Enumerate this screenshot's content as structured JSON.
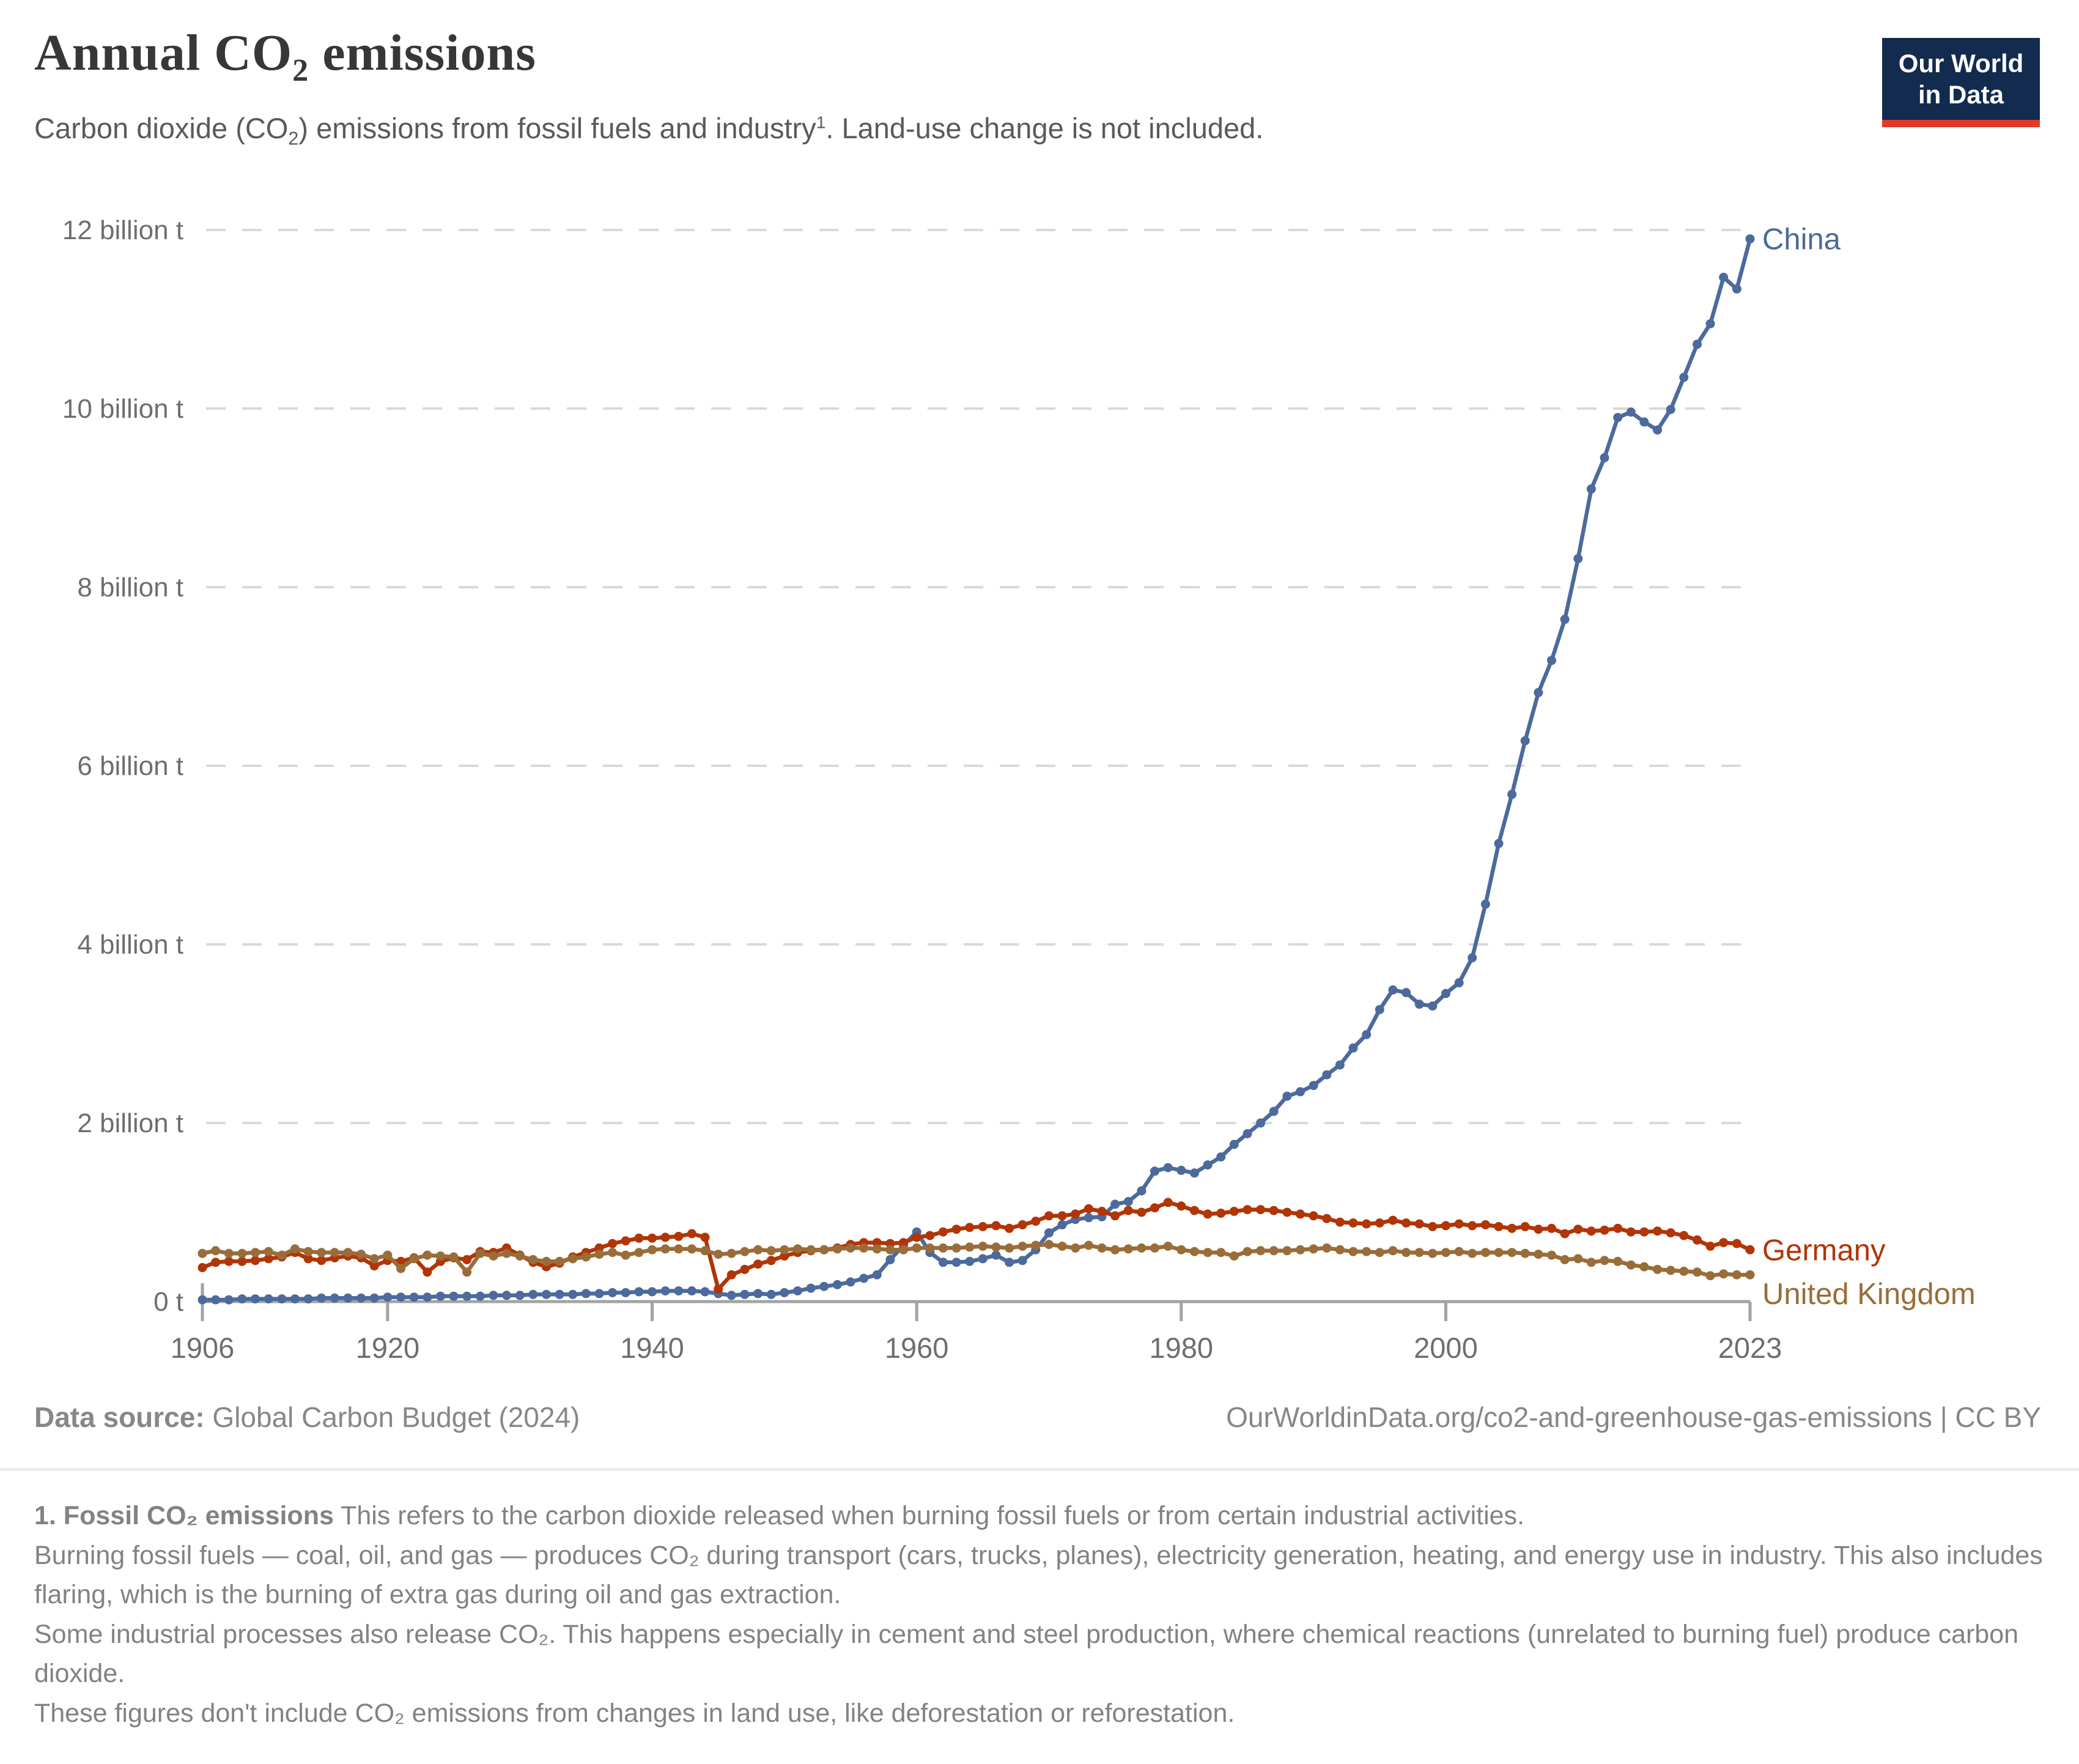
{
  "header": {
    "title_pre": "Annual CO",
    "title_sub": "2",
    "title_post": " emissions",
    "subtitle_pre": "Carbon dioxide (CO",
    "subtitle_sub": "2",
    "subtitle_mid": ") emissions from fossil fuels and industry",
    "subtitle_sup": "1",
    "subtitle_post": ". Land-use change is not included."
  },
  "logo": {
    "line1": "Our World",
    "line2": "in Data",
    "bg_color": "#122B4E",
    "accent_color": "#E23A2A"
  },
  "chart_data": {
    "type": "line",
    "title": "Annual CO2 emissions",
    "unit": "billion t",
    "year_start": 1906,
    "year_end": 2023,
    "year_step": 1,
    "ylim": [
      0,
      12.4
    ],
    "grid": "dashed-horizontal",
    "legend_position": "end-of-line-labels",
    "x_ticks": [
      1906,
      1920,
      1940,
      1960,
      1980,
      2000,
      2023
    ],
    "y_ticks": [
      {
        "value": 0,
        "label": "0 t"
      },
      {
        "value": 2,
        "label": "2 billion t"
      },
      {
        "value": 4,
        "label": "4 billion t"
      },
      {
        "value": 6,
        "label": "6 billion t"
      },
      {
        "value": 8,
        "label": "8 billion t"
      },
      {
        "value": 10,
        "label": "10 billion t"
      },
      {
        "value": 12,
        "label": "12 billion t"
      }
    ],
    "series": [
      {
        "name": "China",
        "color": "#4C6A9C",
        "values": [
          0.02,
          0.02,
          0.02,
          0.03,
          0.03,
          0.03,
          0.03,
          0.03,
          0.03,
          0.04,
          0.04,
          0.04,
          0.04,
          0.04,
          0.05,
          0.05,
          0.05,
          0.05,
          0.06,
          0.06,
          0.06,
          0.06,
          0.07,
          0.07,
          0.07,
          0.08,
          0.08,
          0.08,
          0.08,
          0.09,
          0.09,
          0.1,
          0.1,
          0.11,
          0.11,
          0.12,
          0.12,
          0.12,
          0.11,
          0.09,
          0.07,
          0.08,
          0.09,
          0.08,
          0.1,
          0.12,
          0.15,
          0.17,
          0.19,
          0.22,
          0.26,
          0.3,
          0.47,
          0.63,
          0.78,
          0.55,
          0.44,
          0.44,
          0.45,
          0.48,
          0.52,
          0.44,
          0.46,
          0.58,
          0.77,
          0.86,
          0.92,
          0.94,
          0.95,
          1.09,
          1.12,
          1.24,
          1.46,
          1.5,
          1.47,
          1.44,
          1.53,
          1.62,
          1.76,
          1.88,
          2.0,
          2.13,
          2.3,
          2.35,
          2.42,
          2.54,
          2.65,
          2.84,
          2.99,
          3.27,
          3.49,
          3.46,
          3.33,
          3.31,
          3.45,
          3.57,
          3.85,
          4.45,
          5.13,
          5.68,
          6.28,
          6.82,
          7.18,
          7.64,
          8.32,
          9.1,
          9.45,
          9.9,
          9.96,
          9.85,
          9.76,
          9.99,
          10.35,
          10.72,
          10.95,
          11.47,
          11.34,
          11.9
        ]
      },
      {
        "name": "Germany",
        "color": "#B13507",
        "values": [
          0.38,
          0.44,
          0.45,
          0.45,
          0.46,
          0.48,
          0.5,
          0.55,
          0.48,
          0.46,
          0.49,
          0.51,
          0.49,
          0.4,
          0.46,
          0.45,
          0.49,
          0.33,
          0.45,
          0.49,
          0.47,
          0.56,
          0.55,
          0.6,
          0.52,
          0.44,
          0.39,
          0.43,
          0.5,
          0.55,
          0.6,
          0.65,
          0.68,
          0.71,
          0.71,
          0.72,
          0.73,
          0.76,
          0.72,
          0.14,
          0.3,
          0.36,
          0.42,
          0.46,
          0.51,
          0.55,
          0.57,
          0.58,
          0.6,
          0.64,
          0.66,
          0.66,
          0.65,
          0.66,
          0.72,
          0.74,
          0.78,
          0.81,
          0.83,
          0.84,
          0.85,
          0.82,
          0.86,
          0.9,
          0.96,
          0.96,
          0.98,
          1.04,
          1.01,
          0.96,
          1.02,
          1.0,
          1.05,
          1.11,
          1.07,
          1.02,
          0.98,
          0.99,
          1.01,
          1.03,
          1.03,
          1.02,
          1.0,
          0.98,
          0.96,
          0.93,
          0.89,
          0.88,
          0.87,
          0.88,
          0.91,
          0.88,
          0.87,
          0.84,
          0.85,
          0.87,
          0.85,
          0.86,
          0.84,
          0.82,
          0.84,
          0.81,
          0.82,
          0.76,
          0.81,
          0.79,
          0.8,
          0.82,
          0.78,
          0.78,
          0.79,
          0.77,
          0.74,
          0.69,
          0.62,
          0.66,
          0.65,
          0.58
        ]
      },
      {
        "name": "United Kingdom",
        "color": "#996D39",
        "values": [
          0.54,
          0.57,
          0.54,
          0.54,
          0.55,
          0.56,
          0.52,
          0.59,
          0.56,
          0.55,
          0.55,
          0.55,
          0.53,
          0.48,
          0.52,
          0.37,
          0.48,
          0.52,
          0.51,
          0.5,
          0.33,
          0.54,
          0.51,
          0.54,
          0.51,
          0.47,
          0.45,
          0.45,
          0.48,
          0.5,
          0.53,
          0.55,
          0.52,
          0.55,
          0.58,
          0.59,
          0.59,
          0.59,
          0.57,
          0.53,
          0.54,
          0.56,
          0.58,
          0.57,
          0.58,
          0.59,
          0.58,
          0.58,
          0.59,
          0.6,
          0.6,
          0.59,
          0.58,
          0.58,
          0.6,
          0.6,
          0.6,
          0.6,
          0.61,
          0.62,
          0.61,
          0.6,
          0.62,
          0.63,
          0.64,
          0.62,
          0.6,
          0.63,
          0.6,
          0.58,
          0.59,
          0.6,
          0.6,
          0.62,
          0.58,
          0.56,
          0.55,
          0.55,
          0.51,
          0.56,
          0.57,
          0.57,
          0.57,
          0.58,
          0.59,
          0.6,
          0.58,
          0.56,
          0.56,
          0.55,
          0.57,
          0.55,
          0.55,
          0.54,
          0.55,
          0.56,
          0.54,
          0.55,
          0.55,
          0.55,
          0.54,
          0.53,
          0.52,
          0.47,
          0.48,
          0.44,
          0.46,
          0.45,
          0.41,
          0.39,
          0.36,
          0.35,
          0.34,
          0.33,
          0.29,
          0.31,
          0.3,
          0.3
        ]
      }
    ],
    "style": {
      "grid_color": "#d9d9d9",
      "axis_color": "#a3a3a3",
      "tick_label_color": "#6e6e6e"
    }
  },
  "footer": {
    "source_label": "Data source:",
    "source_value": " Global Carbon Budget (2024)",
    "link": "OurWorldinData.org/co2-and-greenhouse-gas-emissions | CC BY"
  },
  "footnote": {
    "lead_bold": "1. Fossil CO₂ emissions",
    "lead_rest": " This refers to the carbon dioxide released when burning fossil fuels or from certain industrial activities.",
    "para2": "Burning fossil fuels — coal, oil, and gas — produces CO₂ during transport (cars, trucks, planes), electricity generation, heating, and energy use in industry. This also includes flaring, which is the burning of extra gas during oil and gas extraction.",
    "para3": "Some industrial processes also release CO₂. This happens especially in cement and steel production, where chemical reactions (unrelated to burning fuel) produce carbon dioxide.",
    "para4": "These figures don't include CO₂ emissions from changes in land use, like deforestation or reforestation."
  }
}
